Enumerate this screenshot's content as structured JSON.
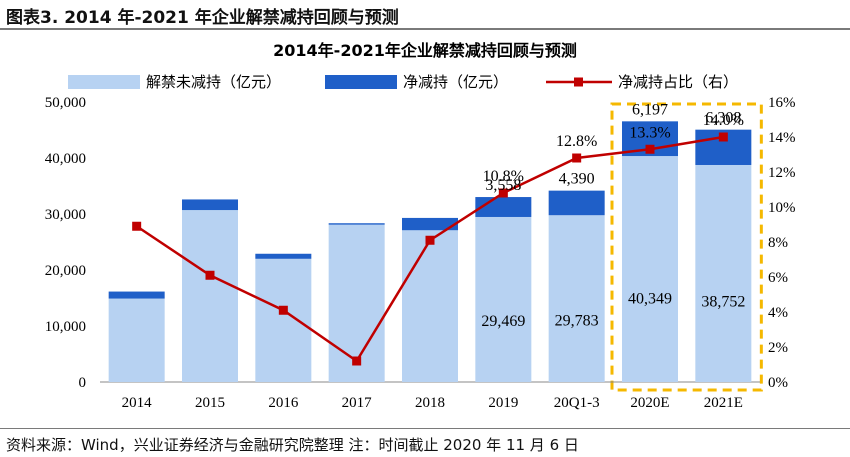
{
  "figure_title": "图表3. 2014 年-2021 年企业解禁减持回顾与预测",
  "source_note": "资料来源：Wind，兴业证券经济与金融研究院整理    注：时间截止 2020 年 11 月 6 日",
  "chart_data": {
    "type": "bar",
    "title": "2014年-2021年企业解禁减持回顾与预测",
    "categories": [
      "2014",
      "2015",
      "2016",
      "2017",
      "2018",
      "2019",
      "20Q1-3",
      "2020E",
      "2021E"
    ],
    "series": [
      {
        "name": "解禁未减持（亿元）",
        "kind": "bar",
        "axis": "left",
        "color": "#b7d2f2",
        "values": [
          14900,
          30700,
          22000,
          28100,
          27100,
          29469,
          29783,
          40349,
          38752
        ]
      },
      {
        "name": "净减持（亿元）",
        "kind": "bar",
        "axis": "left",
        "color": "#1f5fc8",
        "values": [
          1250,
          1900,
          900,
          250,
          2200,
          3558,
          4390,
          6197,
          6308
        ]
      },
      {
        "name": "净减持占比（右）",
        "kind": "line",
        "axis": "right",
        "color": "#c00000",
        "values": [
          8.9,
          6.1,
          4.1,
          1.2,
          8.1,
          10.8,
          12.8,
          13.3,
          14.0
        ]
      }
    ],
    "data_labels": {
      "bottom": [
        "",
        "",
        "",
        "",
        "",
        "29,469",
        "29,783",
        "40,349",
        "38,752"
      ],
      "top": [
        "",
        "",
        "",
        "",
        "",
        "3,558",
        "4,390",
        "6,197",
        "6,308"
      ],
      "ratio": [
        "",
        "",
        "",
        "",
        "",
        "10.8%",
        "12.8%",
        "13.3%",
        "14.0%"
      ]
    },
    "y_left": {
      "min": 0,
      "max": 50000,
      "ticks": [
        "0",
        "10,000",
        "20,000",
        "30,000",
        "40,000",
        "50,000"
      ]
    },
    "y_right": {
      "min": 0,
      "max": 16,
      "ticks": [
        "0%",
        "2%",
        "4%",
        "6%",
        "8%",
        "10%",
        "12%",
        "14%",
        "16%"
      ]
    },
    "highlight": {
      "categories": [
        "2020E",
        "2021E"
      ],
      "color": "#f5b800",
      "style": "dashed"
    },
    "legend_position": "top",
    "grid": false
  }
}
